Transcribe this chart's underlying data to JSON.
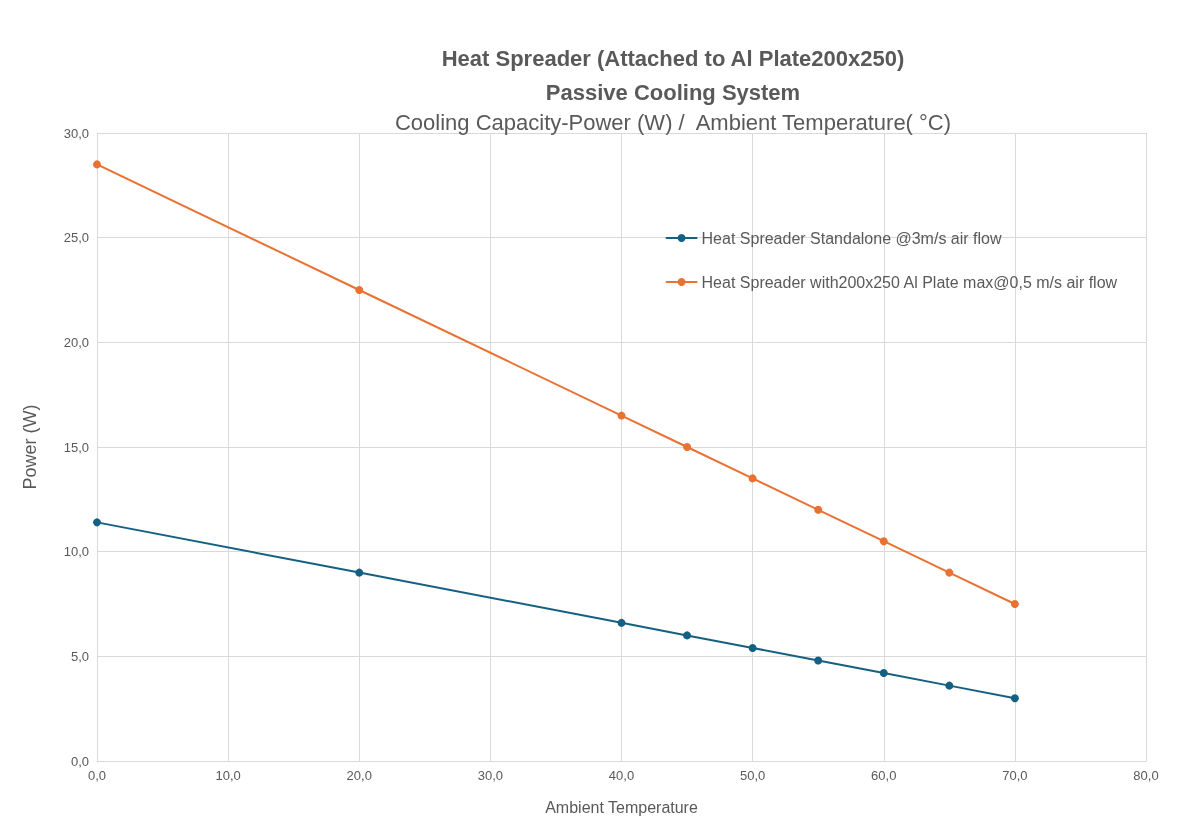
{
  "chart_data": {
    "type": "line",
    "title": "Heat Spreader (Attached to Al Plate200x250)\nPassive Cooling System",
    "subtitle": "Cooling Capacity-Power (W) /  Ambient Temperature( °C)",
    "xlabel": "Ambient Temperature",
    "ylabel": "Power (W)",
    "x": [
      0,
      20,
      40,
      45,
      50,
      55,
      60,
      65,
      70
    ],
    "series": [
      {
        "name": "Heat Spreader Standalone @3m/s air flow",
        "color": "#156082",
        "values": [
          11.4,
          9.0,
          6.6,
          6.0,
          5.4,
          4.8,
          4.2,
          3.6,
          3.0
        ]
      },
      {
        "name": "Heat Spreader with200x250 Al Plate max@0,5 m/s air flow",
        "color": "#e97132",
        "values": [
          28.5,
          22.5,
          16.5,
          15.0,
          13.5,
          12.0,
          10.5,
          9.0,
          7.5
        ]
      }
    ],
    "xlim": [
      0,
      80
    ],
    "xticks": [
      {
        "value": 0,
        "label": "0,0"
      },
      {
        "value": 10,
        "label": "10,0"
      },
      {
        "value": 20,
        "label": "20,0"
      },
      {
        "value": 30,
        "label": "30,0"
      },
      {
        "value": 40,
        "label": "40,0"
      },
      {
        "value": 50,
        "label": "50,0"
      },
      {
        "value": 60,
        "label": "60,0"
      },
      {
        "value": 70,
        "label": "70,0"
      },
      {
        "value": 80,
        "label": "80,0"
      }
    ],
    "ylim": [
      0,
      30
    ],
    "yticks": [
      {
        "value": 0,
        "label": "0,0"
      },
      {
        "value": 5,
        "label": "5,0"
      },
      {
        "value": 10,
        "label": "10,0"
      },
      {
        "value": 15,
        "label": "15,0"
      },
      {
        "value": 20,
        "label": "20,0"
      },
      {
        "value": 25,
        "label": "25,0"
      },
      {
        "value": 30,
        "label": "30,0"
      }
    ],
    "grid": true,
    "legend": "top right",
    "marker": "circle",
    "line_style": "solid"
  }
}
